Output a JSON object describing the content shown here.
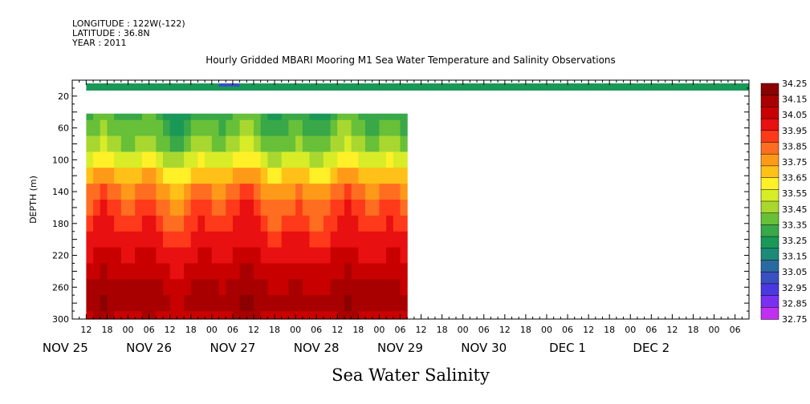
{
  "header": {
    "longitude": "LONGITUDE : 122W(-122)",
    "latitude": "LATITUDE : 36.8N",
    "year": "YEAR : 2011"
  },
  "chart_data": {
    "type": "heatmap",
    "title": "Hourly Gridded MBARI Mooring M1 Sea Water Temperature and Salinity Observations",
    "xlabel": "Sea Water Salinity",
    "ylabel": "DEPTH (m)",
    "y_range": [
      300,
      0
    ],
    "y_ticks": [
      20,
      60,
      100,
      140,
      180,
      220,
      260,
      300
    ],
    "x_range_hours": [
      -22,
      172
    ],
    "x_hour_labels": [
      "12",
      "18",
      "00",
      "06",
      "12",
      "18",
      "00",
      "06",
      "12",
      "18",
      "00",
      "06",
      "12",
      "18",
      "00",
      "06",
      "12",
      "18",
      "00",
      "06",
      "12",
      "18",
      "00",
      "06",
      "12",
      "18",
      "00",
      "06",
      "12",
      "18",
      "00",
      "06"
    ],
    "x_date_labels": [
      "NOV 25",
      "NOV 26",
      "NOV 27",
      "NOV 28",
      "NOV 29",
      "NOV 30",
      "DEC  1",
      "DEC  2"
    ],
    "colorbar": {
      "levels": [
        "34.25",
        "34.15",
        "34.05",
        "33.95",
        "33.85",
        "33.75",
        "33.65",
        "33.55",
        "33.45",
        "33.35",
        "33.25",
        "33.15",
        "33.05",
        "32.95",
        "32.85",
        "32.75"
      ],
      "colors": [
        "#8b0000",
        "#a80000",
        "#c80000",
        "#e81010",
        "#ff3a1a",
        "#ff6e20",
        "#ff9a18",
        "#ffc018",
        "#fff028",
        "#d8ec28",
        "#a8d830",
        "#68c038",
        "#38a848",
        "#1a9858",
        "#1e8a78",
        "#2a6aa0",
        "#3a50c0",
        "#4a38e0",
        "#7a30f0",
        "#c030f0"
      ],
      "colors_note": "band colors from dark red (high) to magenta (low)"
    },
    "surface_band": {
      "depth_range": [
        0,
        10
      ],
      "value": 33.25,
      "low_spot_value": 32.95,
      "hour_range": [
        -18,
        172
      ]
    },
    "profile": {
      "hour_range": [
        -18,
        74
      ],
      "depths": [
        35,
        50,
        70,
        90,
        110,
        130,
        150,
        170,
        190,
        210,
        230,
        250,
        270,
        290,
        300
      ],
      "values": [
        33.3,
        33.35,
        33.42,
        33.55,
        33.7,
        33.82,
        33.9,
        33.95,
        34.0,
        34.05,
        34.1,
        34.15,
        34.18,
        34.12,
        34.08
      ]
    }
  }
}
